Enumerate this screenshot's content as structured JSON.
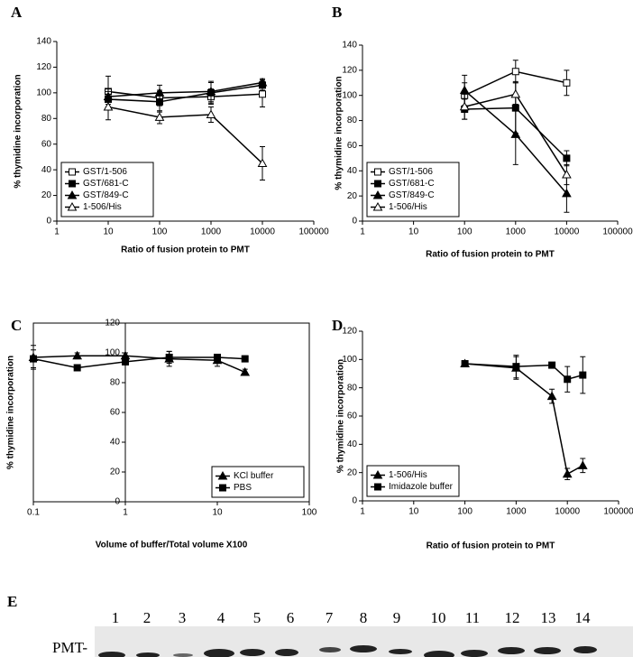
{
  "chart_data": [
    {
      "type": "line",
      "panel_label": "A",
      "x_label": "Ratio of fusion protein to PMT",
      "y_label": "% thymidine incorporation",
      "log_x": true,
      "xlim": [
        1,
        100000
      ],
      "xticks": [
        1,
        10,
        100,
        1000,
        10000,
        100000
      ],
      "ylim": [
        0,
        140
      ],
      "yticks": [
        0,
        20,
        40,
        60,
        80,
        100,
        120,
        140
      ],
      "legend": "lower left",
      "frame": false,
      "x": [
        10,
        100,
        1000,
        10000
      ],
      "series": [
        {
          "name": "GST/1-506",
          "color": "#000000",
          "marker": "square",
          "filled": false,
          "values": [
            101,
            96,
            97,
            99
          ],
          "errors": [
            12,
            6,
            6,
            10
          ]
        },
        {
          "name": "GST/681-C",
          "color": "#000000",
          "marker": "square",
          "filled": true,
          "values": [
            95,
            93,
            100,
            106
          ],
          "errors": [
            6,
            8,
            8,
            4
          ]
        },
        {
          "name": "GST/849-C",
          "color": "#000000",
          "marker": "triangle",
          "filled": true,
          "values": [
            97,
            100,
            101,
            108
          ],
          "errors": [
            6,
            6,
            8,
            3
          ]
        },
        {
          "name": "1-506/His",
          "color": "#000000",
          "marker": "triangle",
          "filled": false,
          "values": [
            89,
            81,
            83,
            45
          ],
          "errors": [
            10,
            5,
            6,
            13
          ]
        }
      ]
    },
    {
      "type": "line",
      "panel_label": "B",
      "x_label": "Ratio of fusion protein to PMT",
      "y_label": "% thymidine incorporation",
      "log_x": true,
      "xlim": [
        1,
        100000
      ],
      "xticks": [
        1,
        10,
        100,
        1000,
        10000,
        100000
      ],
      "ylim": [
        0,
        140
      ],
      "yticks": [
        0,
        20,
        40,
        60,
        80,
        100,
        120,
        140
      ],
      "legend": "lower left",
      "frame": false,
      "x": [
        100,
        1000,
        10000
      ],
      "series": [
        {
          "name": "GST/1-506",
          "color": "#000000",
          "marker": "square",
          "filled": false,
          "values": [
            100,
            119,
            110
          ],
          "errors": [
            10,
            9,
            10
          ]
        },
        {
          "name": "GST/681-C",
          "color": "#000000",
          "marker": "square",
          "filled": true,
          "values": [
            89,
            90,
            50
          ],
          "errors": [
            8,
            20,
            6
          ]
        },
        {
          "name": "GST/849-C",
          "color": "#000000",
          "marker": "triangle",
          "filled": true,
          "values": [
            104,
            69,
            22
          ],
          "errors": [
            12,
            24,
            15
          ]
        },
        {
          "name": "1-506/His",
          "color": "#000000",
          "marker": "triangle",
          "filled": false,
          "values": [
            91,
            101,
            37
          ],
          "errors": [
            10,
            10,
            8
          ]
        }
      ]
    },
    {
      "type": "line",
      "panel_label": "C",
      "x_label": "Volume of buffer/Total volume X100",
      "y_label": "% thymidine incorporation",
      "log_x": true,
      "xlim": [
        0.1,
        100
      ],
      "xticks": [
        0.1,
        1,
        10,
        100
      ],
      "ylim": [
        0,
        120
      ],
      "yticks": [
        0,
        20,
        40,
        60,
        80,
        100,
        120
      ],
      "legend": "lower right",
      "frame": true,
      "y_axis_at": 1,
      "x": [
        0.1,
        0.3,
        1,
        3,
        10,
        20
      ],
      "series": [
        {
          "name": "KCl buffer",
          "color": "#000000",
          "marker": "triangle",
          "filled": true,
          "values": [
            97,
            98,
            98,
            96,
            95,
            87
          ],
          "errors": [
            8,
            2,
            2,
            5,
            4,
            2
          ]
        },
        {
          "name": "PBS",
          "color": "#000000",
          "marker": "square",
          "filled": true,
          "values": [
            96,
            90,
            94,
            97,
            97,
            96
          ],
          "errors": [
            6,
            2,
            2,
            4,
            2,
            2
          ]
        }
      ]
    },
    {
      "type": "line",
      "panel_label": "D",
      "x_label": "Ratio of fusion protein to PMT",
      "y_label": "% thymidine incorporation",
      "log_x": true,
      "xlim": [
        1,
        100000
      ],
      "xticks": [
        1,
        10,
        100,
        1000,
        10000,
        100000
      ],
      "ylim": [
        0,
        120
      ],
      "yticks": [
        0,
        20,
        40,
        60,
        80,
        100,
        120
      ],
      "legend": "lower left",
      "frame": false,
      "x": [
        100,
        1000,
        5000,
        10000,
        20000
      ],
      "series": [
        {
          "name": "1-506/His",
          "color": "#000000",
          "marker": "triangle",
          "filled": true,
          "values": [
            97,
            94,
            74,
            19,
            25
          ],
          "errors": [
            2,
            8,
            5,
            4,
            5
          ]
        },
        {
          "name": "Imidazole buffer",
          "color": "#000000",
          "marker": "square",
          "filled": true,
          "values": [
            97,
            95,
            96,
            86,
            89
          ],
          "errors": [
            2,
            8,
            2,
            9,
            13
          ]
        }
      ]
    }
  ],
  "gel": {
    "panel_label": "E",
    "lanes": [
      "1",
      "2",
      "3",
      "4",
      "5",
      "6",
      "7",
      "8",
      "9",
      "10",
      "11",
      "12",
      "13",
      "14"
    ],
    "band_label": "PMT-"
  }
}
